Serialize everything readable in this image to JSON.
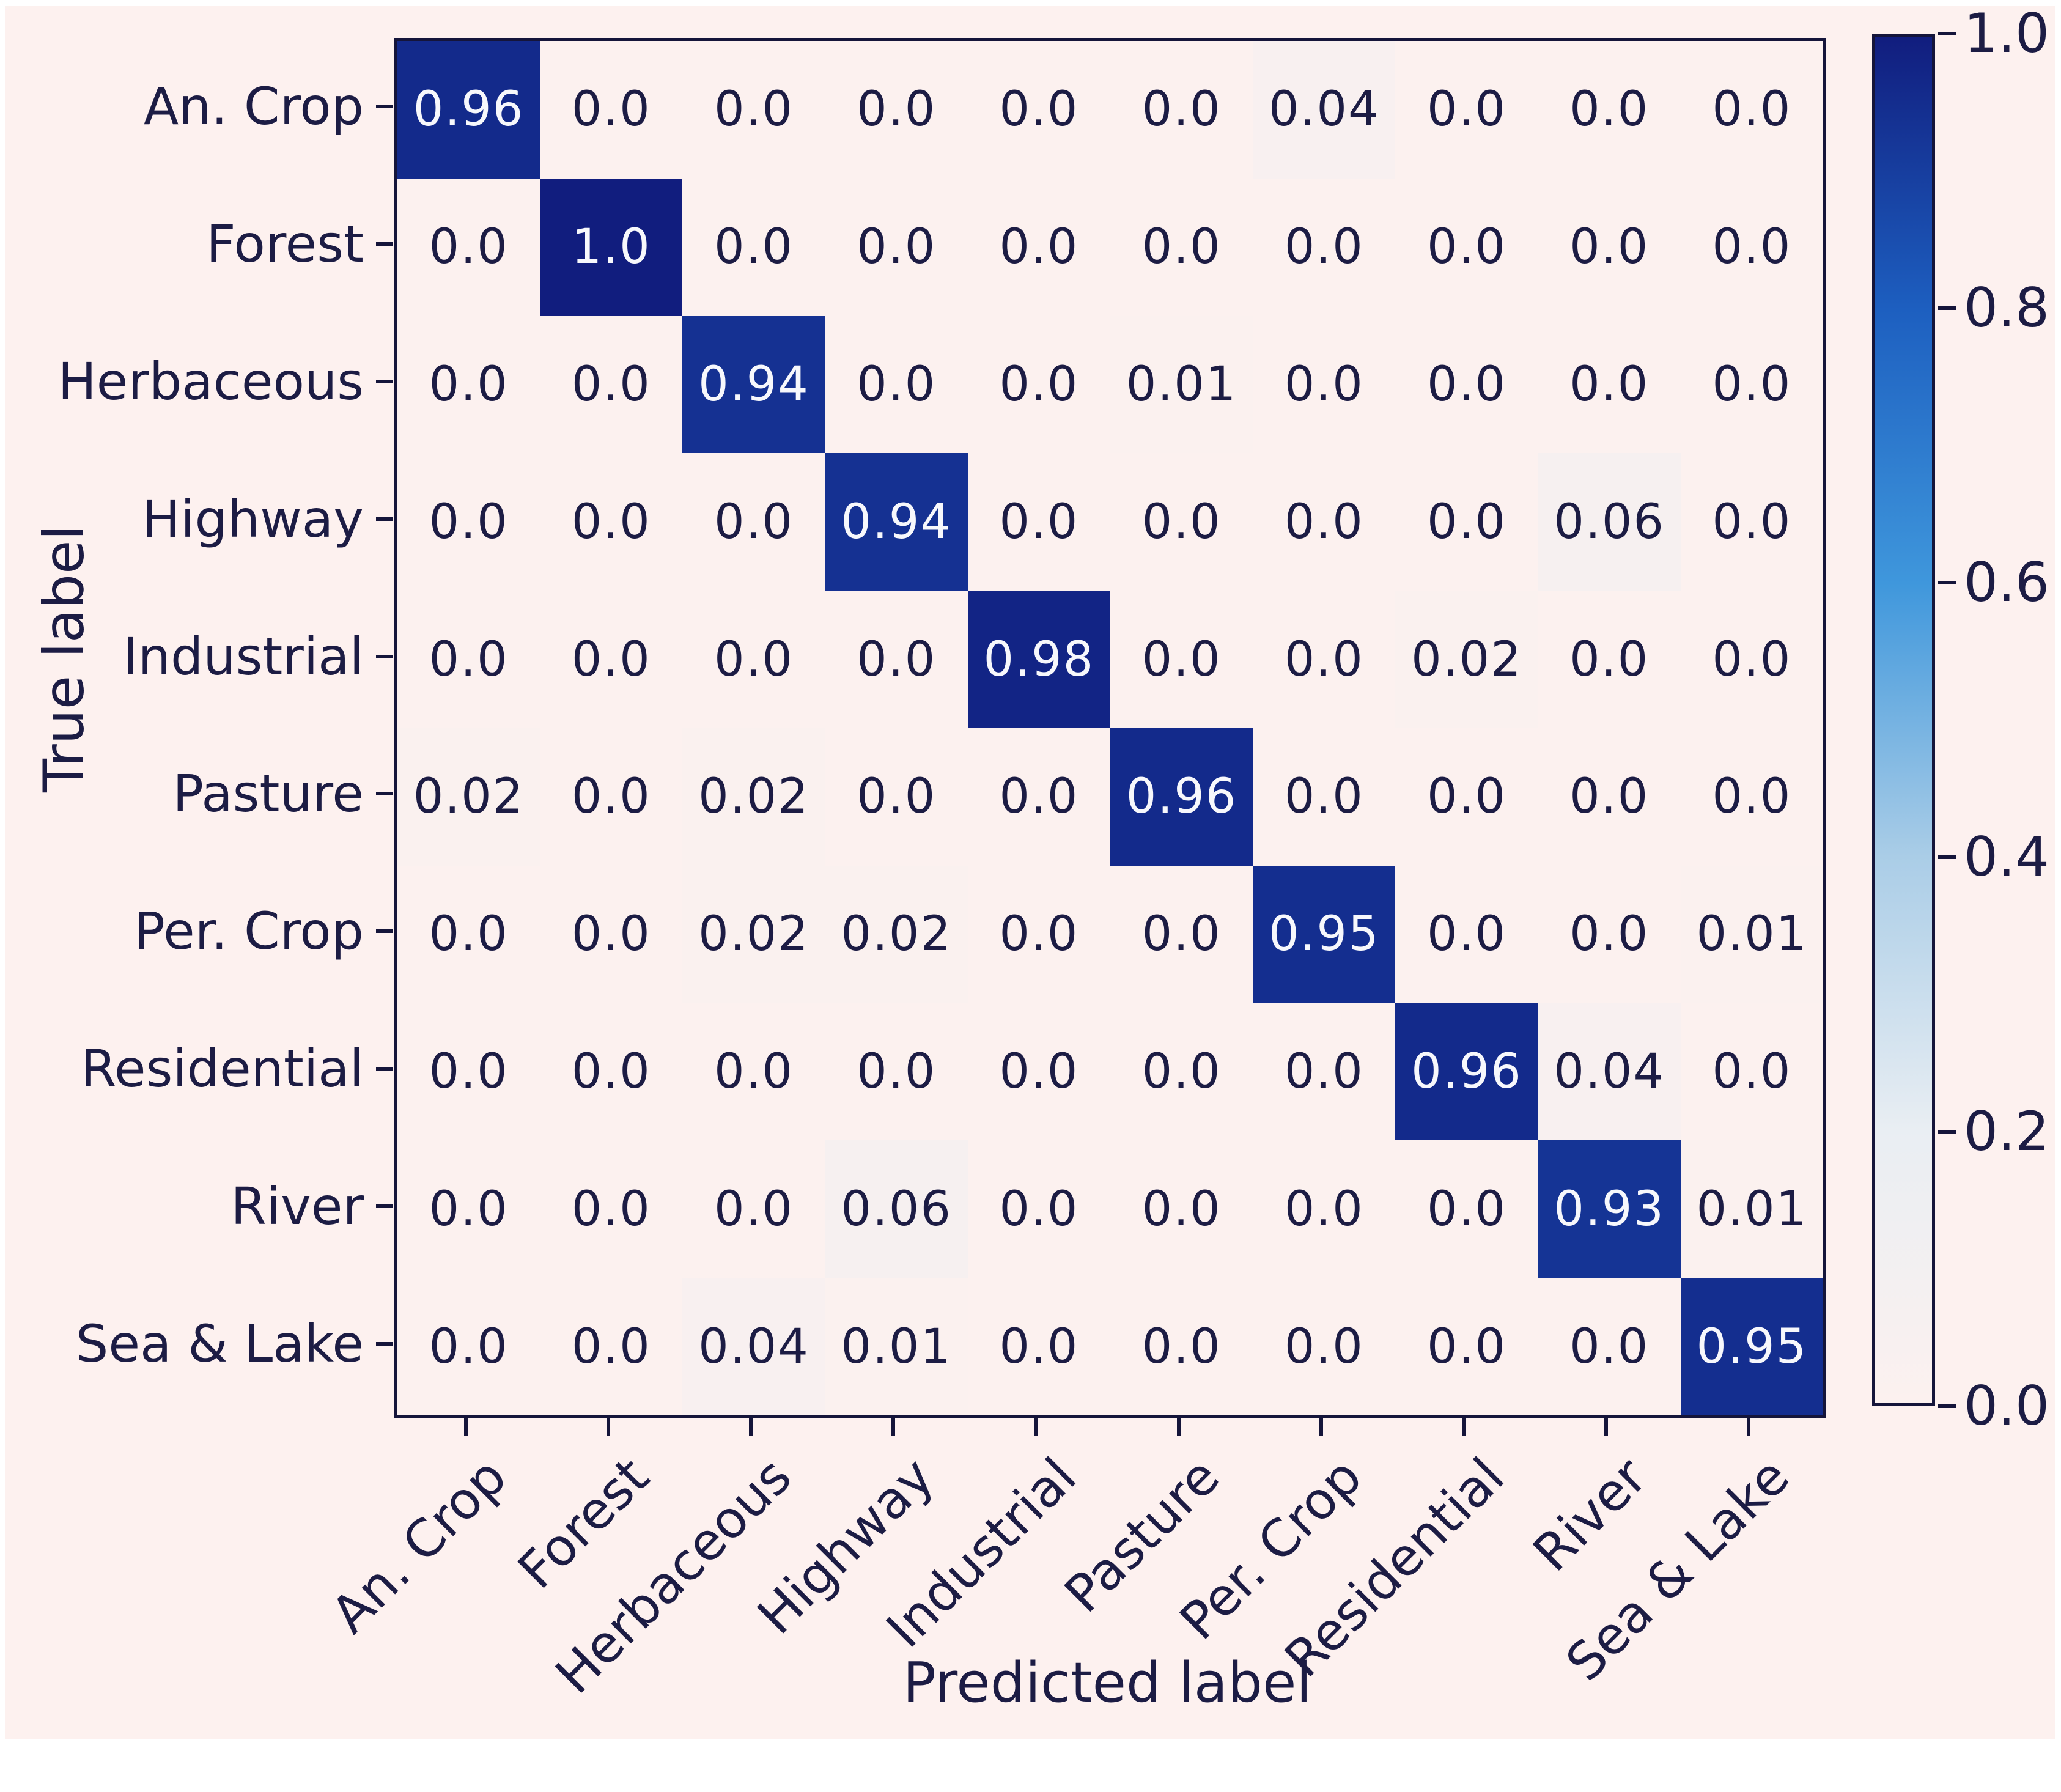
{
  "chart_data": {
    "type": "heatmap",
    "title": "",
    "xlabel": "Predicted label",
    "ylabel": "True label",
    "colormap": "Blues",
    "categories": [
      "An. Crop",
      "Forest",
      "Herbaceous",
      "Highway",
      "Industrial",
      "Pasture",
      "Per. Crop",
      "Residential",
      "River",
      "Sea & Lake"
    ],
    "x_categories": [
      "An. Crop",
      "Forest",
      "Herbaceous",
      "Highway",
      "Industrial",
      "Pasture",
      "Per. Crop",
      "Residential",
      "River",
      "Sea & Lake"
    ],
    "matrix": [
      [
        0.96,
        0.0,
        0.0,
        0.0,
        0.0,
        0.0,
        0.04,
        0.0,
        0.0,
        0.0
      ],
      [
        0.0,
        1.0,
        0.0,
        0.0,
        0.0,
        0.0,
        0.0,
        0.0,
        0.0,
        0.0
      ],
      [
        0.0,
        0.0,
        0.94,
        0.0,
        0.0,
        0.01,
        0.0,
        0.0,
        0.0,
        0.0
      ],
      [
        0.0,
        0.0,
        0.0,
        0.94,
        0.0,
        0.0,
        0.0,
        0.0,
        0.06,
        0.0
      ],
      [
        0.0,
        0.0,
        0.0,
        0.0,
        0.98,
        0.0,
        0.0,
        0.02,
        0.0,
        0.0
      ],
      [
        0.02,
        0.0,
        0.02,
        0.0,
        0.0,
        0.96,
        0.0,
        0.0,
        0.0,
        0.0
      ],
      [
        0.0,
        0.0,
        0.02,
        0.02,
        0.0,
        0.0,
        0.95,
        0.0,
        0.0,
        0.01
      ],
      [
        0.0,
        0.0,
        0.0,
        0.0,
        0.0,
        0.0,
        0.0,
        0.96,
        0.04,
        0.0
      ],
      [
        0.0,
        0.0,
        0.0,
        0.06,
        0.0,
        0.0,
        0.0,
        0.0,
        0.93,
        0.01
      ],
      [
        0.0,
        0.0,
        0.04,
        0.01,
        0.0,
        0.0,
        0.0,
        0.0,
        0.0,
        0.95
      ]
    ],
    "cell_text": [
      [
        "0.96",
        "0.0",
        "0.0",
        "0.0",
        "0.0",
        "0.0",
        "0.04",
        "0.0",
        "0.0",
        "0.0"
      ],
      [
        "0.0",
        "1.0",
        "0.0",
        "0.0",
        "0.0",
        "0.0",
        "0.0",
        "0.0",
        "0.0",
        "0.0"
      ],
      [
        "0.0",
        "0.0",
        "0.94",
        "0.0",
        "0.0",
        "0.01",
        "0.0",
        "0.0",
        "0.0",
        "0.0"
      ],
      [
        "0.0",
        "0.0",
        "0.0",
        "0.94",
        "0.0",
        "0.0",
        "0.0",
        "0.0",
        "0.06",
        "0.0"
      ],
      [
        "0.0",
        "0.0",
        "0.0",
        "0.0",
        "0.98",
        "0.0",
        "0.0",
        "0.02",
        "0.0",
        "0.0"
      ],
      [
        "0.02",
        "0.0",
        "0.02",
        "0.0",
        "0.0",
        "0.96",
        "0.0",
        "0.0",
        "0.0",
        "0.0"
      ],
      [
        "0.0",
        "0.0",
        "0.02",
        "0.02",
        "0.0",
        "0.0",
        "0.95",
        "0.0",
        "0.0",
        "0.01"
      ],
      [
        "0.0",
        "0.0",
        "0.0",
        "0.0",
        "0.0",
        "0.0",
        "0.0",
        "0.96",
        "0.04",
        "0.0"
      ],
      [
        "0.0",
        "0.0",
        "0.0",
        "0.06",
        "0.0",
        "0.0",
        "0.0",
        "0.0",
        "0.93",
        "0.01"
      ],
      [
        "0.0",
        "0.0",
        "0.04",
        "0.01",
        "0.0",
        "0.0",
        "0.0",
        "0.0",
        "0.0",
        "0.95"
      ]
    ],
    "colorbar": {
      "tick_labels": [
        "1.0",
        "0.8",
        "0.6",
        "0.4",
        "0.2",
        "0.0"
      ],
      "min": 0.0,
      "max": 1.0,
      "position": "right"
    },
    "axis_ranges": {
      "rows": 10,
      "cols": 10
    },
    "legend_position": "none",
    "grid": false
  },
  "colors": {
    "figure_background": "#fdf1ef",
    "cell_low": "#fcf1ef",
    "cell_high": "#111d7e",
    "text_dark": "#1c1c44",
    "text_light": "#f7f8fc",
    "axis_line": "#15153a"
  }
}
